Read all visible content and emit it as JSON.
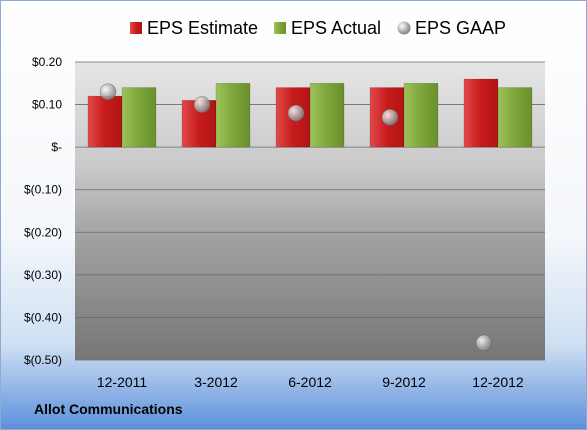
{
  "chart_data": {
    "type": "bar",
    "categories": [
      "12-2011",
      "3-2012",
      "6-2012",
      "9-2012",
      "12-2012"
    ],
    "series": [
      {
        "name": "EPS Estimate",
        "kind": "bar",
        "color": "#cc1f1f",
        "values": [
          0.12,
          0.11,
          0.14,
          0.14,
          0.16
        ]
      },
      {
        "name": "EPS Actual",
        "kind": "bar",
        "color": "#7aa33a",
        "values": [
          0.14,
          0.15,
          0.15,
          0.15,
          0.14
        ]
      },
      {
        "name": "EPS GAAP",
        "kind": "scatter",
        "color": "#a8a8a8",
        "values": [
          0.13,
          0.1,
          0.08,
          0.07,
          -0.46
        ]
      }
    ],
    "yticks": [
      0.2,
      0.1,
      0,
      -0.1,
      -0.2,
      -0.3,
      -0.4,
      -0.5
    ],
    "ytick_labels": [
      "$0.20",
      "$0.10",
      "$-",
      "$(0.10)",
      "$(0.20)",
      "$(0.30)",
      "$(0.40)",
      "$(0.50)"
    ],
    "ylim": [
      -0.5,
      0.2
    ],
    "legend_position": "top",
    "grid": true
  },
  "company": "Allot Communications"
}
